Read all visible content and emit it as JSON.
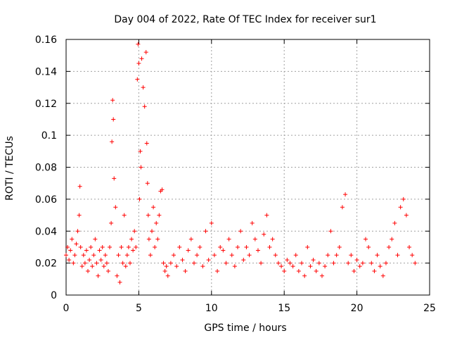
{
  "chart_data": {
    "type": "scatter",
    "title": "Day 004 of 2022, Rate Of TEC Index for receiver sur1",
    "xlabel": "GPS time / hours",
    "ylabel": "ROTI / TECUs",
    "xlim": [
      0,
      25
    ],
    "ylim": [
      0,
      0.16
    ],
    "x_ticks": [
      0,
      5,
      10,
      15,
      20,
      25
    ],
    "x_tick_labels": [
      "0",
      "5",
      "10",
      "15",
      "20",
      "25"
    ],
    "y_ticks": [
      0,
      0.02,
      0.04,
      0.06,
      0.08,
      0.1,
      0.12,
      0.14,
      0.16
    ],
    "y_tick_labels": [
      "0",
      "0.02",
      "0.04",
      "0.06",
      "0.08",
      "0.1",
      "0.12",
      "0.14",
      "0.16"
    ],
    "grid": true,
    "marker": "+",
    "color": "#ff0000",
    "series": [
      {
        "name": "sur1",
        "x": [
          0.0,
          0.1,
          0.2,
          0.3,
          0.4,
          0.5,
          0.6,
          0.7,
          0.8,
          0.9,
          0.95,
          1.0,
          1.1,
          1.2,
          1.3,
          1.4,
          1.5,
          1.6,
          1.7,
          1.8,
          1.9,
          2.0,
          2.1,
          2.2,
          2.3,
          2.4,
          2.5,
          2.6,
          2.7,
          2.8,
          2.9,
          3.0,
          3.1,
          3.15,
          3.2,
          3.25,
          3.3,
          3.4,
          3.5,
          3.6,
          3.7,
          3.8,
          3.9,
          4.0,
          4.1,
          4.2,
          4.3,
          4.4,
          4.5,
          4.6,
          4.7,
          4.8,
          4.9,
          4.95,
          5.0,
          5.05,
          5.1,
          5.15,
          5.2,
          5.3,
          5.4,
          5.5,
          5.55,
          5.6,
          5.65,
          5.7,
          5.8,
          5.9,
          6.0,
          6.1,
          6.2,
          6.3,
          6.4,
          6.5,
          6.6,
          6.7,
          6.8,
          6.9,
          7.0,
          7.2,
          7.4,
          7.6,
          7.8,
          8.0,
          8.2,
          8.4,
          8.6,
          8.8,
          9.0,
          9.2,
          9.4,
          9.6,
          9.8,
          10.0,
          10.2,
          10.4,
          10.6,
          10.8,
          11.0,
          11.2,
          11.4,
          11.6,
          11.8,
          12.0,
          12.2,
          12.4,
          12.6,
          12.8,
          13.0,
          13.2,
          13.4,
          13.6,
          13.8,
          14.0,
          14.2,
          14.4,
          14.6,
          14.8,
          15.0,
          15.2,
          15.4,
          15.6,
          15.8,
          16.0,
          16.2,
          16.4,
          16.6,
          16.8,
          17.0,
          17.2,
          17.4,
          17.6,
          17.8,
          18.0,
          18.2,
          18.4,
          18.6,
          18.8,
          19.0,
          19.2,
          19.4,
          19.6,
          19.8,
          20.0,
          20.2,
          20.4,
          20.6,
          20.8,
          21.0,
          21.2,
          21.4,
          21.6,
          21.8,
          22.0,
          22.2,
          22.4,
          22.6,
          22.8,
          23.0,
          23.2,
          23.4,
          23.6,
          23.8,
          24.0
        ],
        "y": [
          0.025,
          0.03,
          0.022,
          0.028,
          0.035,
          0.02,
          0.025,
          0.032,
          0.04,
          0.05,
          0.068,
          0.03,
          0.018,
          0.025,
          0.02,
          0.028,
          0.015,
          0.022,
          0.03,
          0.018,
          0.025,
          0.035,
          0.02,
          0.012,
          0.028,
          0.022,
          0.03,
          0.018,
          0.025,
          0.02,
          0.015,
          0.03,
          0.045,
          0.096,
          0.122,
          0.11,
          0.073,
          0.055,
          0.012,
          0.025,
          0.008,
          0.03,
          0.02,
          0.05,
          0.018,
          0.025,
          0.03,
          0.02,
          0.035,
          0.028,
          0.04,
          0.03,
          0.135,
          0.157,
          0.145,
          0.06,
          0.09,
          0.08,
          0.148,
          0.13,
          0.118,
          0.152,
          0.095,
          0.07,
          0.05,
          0.035,
          0.025,
          0.04,
          0.055,
          0.03,
          0.045,
          0.035,
          0.05,
          0.065,
          0.066,
          0.02,
          0.015,
          0.018,
          0.012,
          0.02,
          0.025,
          0.018,
          0.03,
          0.022,
          0.015,
          0.028,
          0.035,
          0.02,
          0.025,
          0.03,
          0.018,
          0.04,
          0.022,
          0.045,
          0.025,
          0.015,
          0.03,
          0.028,
          0.02,
          0.035,
          0.025,
          0.018,
          0.03,
          0.04,
          0.022,
          0.03,
          0.025,
          0.045,
          0.035,
          0.028,
          0.02,
          0.038,
          0.05,
          0.03,
          0.035,
          0.025,
          0.02,
          0.018,
          0.015,
          0.022,
          0.02,
          0.018,
          0.025,
          0.015,
          0.02,
          0.012,
          0.03,
          0.018,
          0.022,
          0.015,
          0.02,
          0.012,
          0.018,
          0.025,
          0.04,
          0.02,
          0.025,
          0.03,
          0.055,
          0.063,
          0.02,
          0.025,
          0.015,
          0.022,
          0.018,
          0.02,
          0.035,
          0.03,
          0.02,
          0.015,
          0.025,
          0.018,
          0.012,
          0.02,
          0.03,
          0.035,
          0.045,
          0.025,
          0.055,
          0.06,
          0.05,
          0.03,
          0.025,
          0.02
        ]
      }
    ]
  }
}
